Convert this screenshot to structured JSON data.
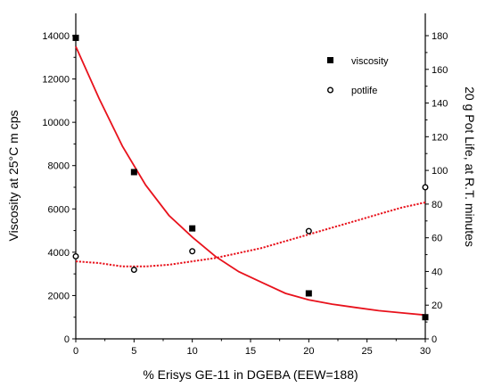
{
  "chart_data": {
    "type": "scatter",
    "x_axis": {
      "label": "% Erisys GE-11 in DGEBA (EEW=188)",
      "min": 0,
      "max": 30,
      "ticks": [
        0,
        5,
        10,
        15,
        20,
        25,
        30
      ]
    },
    "y_axis_left": {
      "label": "Viscosity at 25°C m cps",
      "min": 0,
      "max": 14000,
      "ticks": [
        0,
        2000,
        4000,
        6000,
        8000,
        10000,
        12000,
        14000
      ]
    },
    "y_axis_right": {
      "label": "20 g Pot Life, at R.T. minutes",
      "min": 0,
      "max": 180,
      "ticks": [
        0,
        20,
        40,
        60,
        80,
        100,
        120,
        140,
        160,
        180
      ]
    },
    "series": [
      {
        "name": "viscosity",
        "axis": "left",
        "marker": "filled-square",
        "points": [
          [
            0,
            13900
          ],
          [
            5,
            7700
          ],
          [
            10,
            5100
          ],
          [
            20,
            2100
          ],
          [
            30,
            1000
          ]
        ],
        "fit_curve": [
          [
            0,
            13500
          ],
          [
            2,
            11100
          ],
          [
            4,
            8900
          ],
          [
            6,
            7100
          ],
          [
            8,
            5700
          ],
          [
            10,
            4700
          ],
          [
            12,
            3800
          ],
          [
            14,
            3100
          ],
          [
            16,
            2600
          ],
          [
            18,
            2100
          ],
          [
            20,
            1800
          ],
          [
            22,
            1600
          ],
          [
            24,
            1450
          ],
          [
            26,
            1300
          ],
          [
            28,
            1200
          ],
          [
            30,
            1100
          ]
        ],
        "fit_color": "#e8121c"
      },
      {
        "name": "potlife",
        "axis": "right",
        "marker": "open-circle",
        "points": [
          [
            0,
            49
          ],
          [
            5,
            41
          ],
          [
            10,
            52
          ],
          [
            20,
            64
          ],
          [
            30,
            90
          ]
        ],
        "fit_curve": [
          [
            0,
            46
          ],
          [
            2,
            45
          ],
          [
            4,
            43
          ],
          [
            6,
            43
          ],
          [
            8,
            44
          ],
          [
            10,
            46
          ],
          [
            12,
            48
          ],
          [
            14,
            51
          ],
          [
            16,
            54
          ],
          [
            18,
            58
          ],
          [
            20,
            62
          ],
          [
            22,
            66
          ],
          [
            24,
            70
          ],
          [
            26,
            74
          ],
          [
            28,
            78
          ],
          [
            30,
            81
          ]
        ],
        "fit_color": "#e8121c"
      }
    ],
    "legend_position": "top-right",
    "grid": false
  }
}
